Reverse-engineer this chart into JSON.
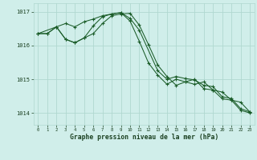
{
  "title": "Graphe pression niveau de la mer (hPa)",
  "bg_color": "#d0eeea",
  "grid_color": "#b0d8d0",
  "line_color": "#1a5c28",
  "ylim": [
    1013.65,
    1017.25
  ],
  "xlim": [
    -0.5,
    23.5
  ],
  "yticks": [
    1014,
    1015,
    1016,
    1017
  ],
  "xticks": [
    0,
    1,
    2,
    3,
    4,
    5,
    6,
    7,
    8,
    9,
    10,
    11,
    12,
    13,
    14,
    15,
    16,
    17,
    18,
    19,
    20,
    21,
    22,
    23
  ],
  "line1_x": [
    0,
    1,
    2,
    3,
    4,
    5,
    6,
    7,
    8,
    9,
    10,
    11,
    13,
    14,
    15,
    16,
    17,
    18,
    19,
    20,
    21,
    22,
    23
  ],
  "line1_y": [
    1016.35,
    1016.35,
    1016.55,
    1016.65,
    1016.55,
    1016.7,
    1016.78,
    1016.88,
    1016.93,
    1016.97,
    1016.8,
    1016.45,
    1015.25,
    1015.0,
    1015.08,
    1015.02,
    1014.98,
    1014.82,
    1014.78,
    1014.48,
    1014.43,
    1014.13,
    1014.03
  ],
  "line2_x": [
    0,
    2,
    3,
    4,
    5,
    6,
    7,
    8,
    9,
    10,
    11,
    12,
    13,
    14,
    15,
    16,
    17,
    18,
    19,
    20,
    21,
    22,
    23
  ],
  "line2_y": [
    1016.35,
    1016.55,
    1016.18,
    1016.08,
    1016.22,
    1016.35,
    1016.65,
    1016.88,
    1016.93,
    1016.95,
    1016.6,
    1016.02,
    1015.42,
    1015.08,
    1014.82,
    1014.92,
    1014.85,
    1014.92,
    1014.68,
    1014.62,
    1014.38,
    1014.32,
    1014.03
  ],
  "line3_x": [
    0,
    1,
    2,
    3,
    4,
    5,
    6,
    7,
    8,
    9,
    10,
    11,
    12,
    13,
    14,
    15,
    16,
    17,
    18,
    19,
    20,
    21,
    22,
    23
  ],
  "line3_y": [
    1016.35,
    1016.35,
    1016.55,
    1016.18,
    1016.08,
    1016.22,
    1016.58,
    1016.85,
    1016.93,
    1016.97,
    1016.72,
    1016.12,
    1015.48,
    1015.12,
    1014.85,
    1015.0,
    1014.92,
    1015.0,
    1014.72,
    1014.68,
    1014.42,
    1014.38,
    1014.08,
    1014.0
  ]
}
